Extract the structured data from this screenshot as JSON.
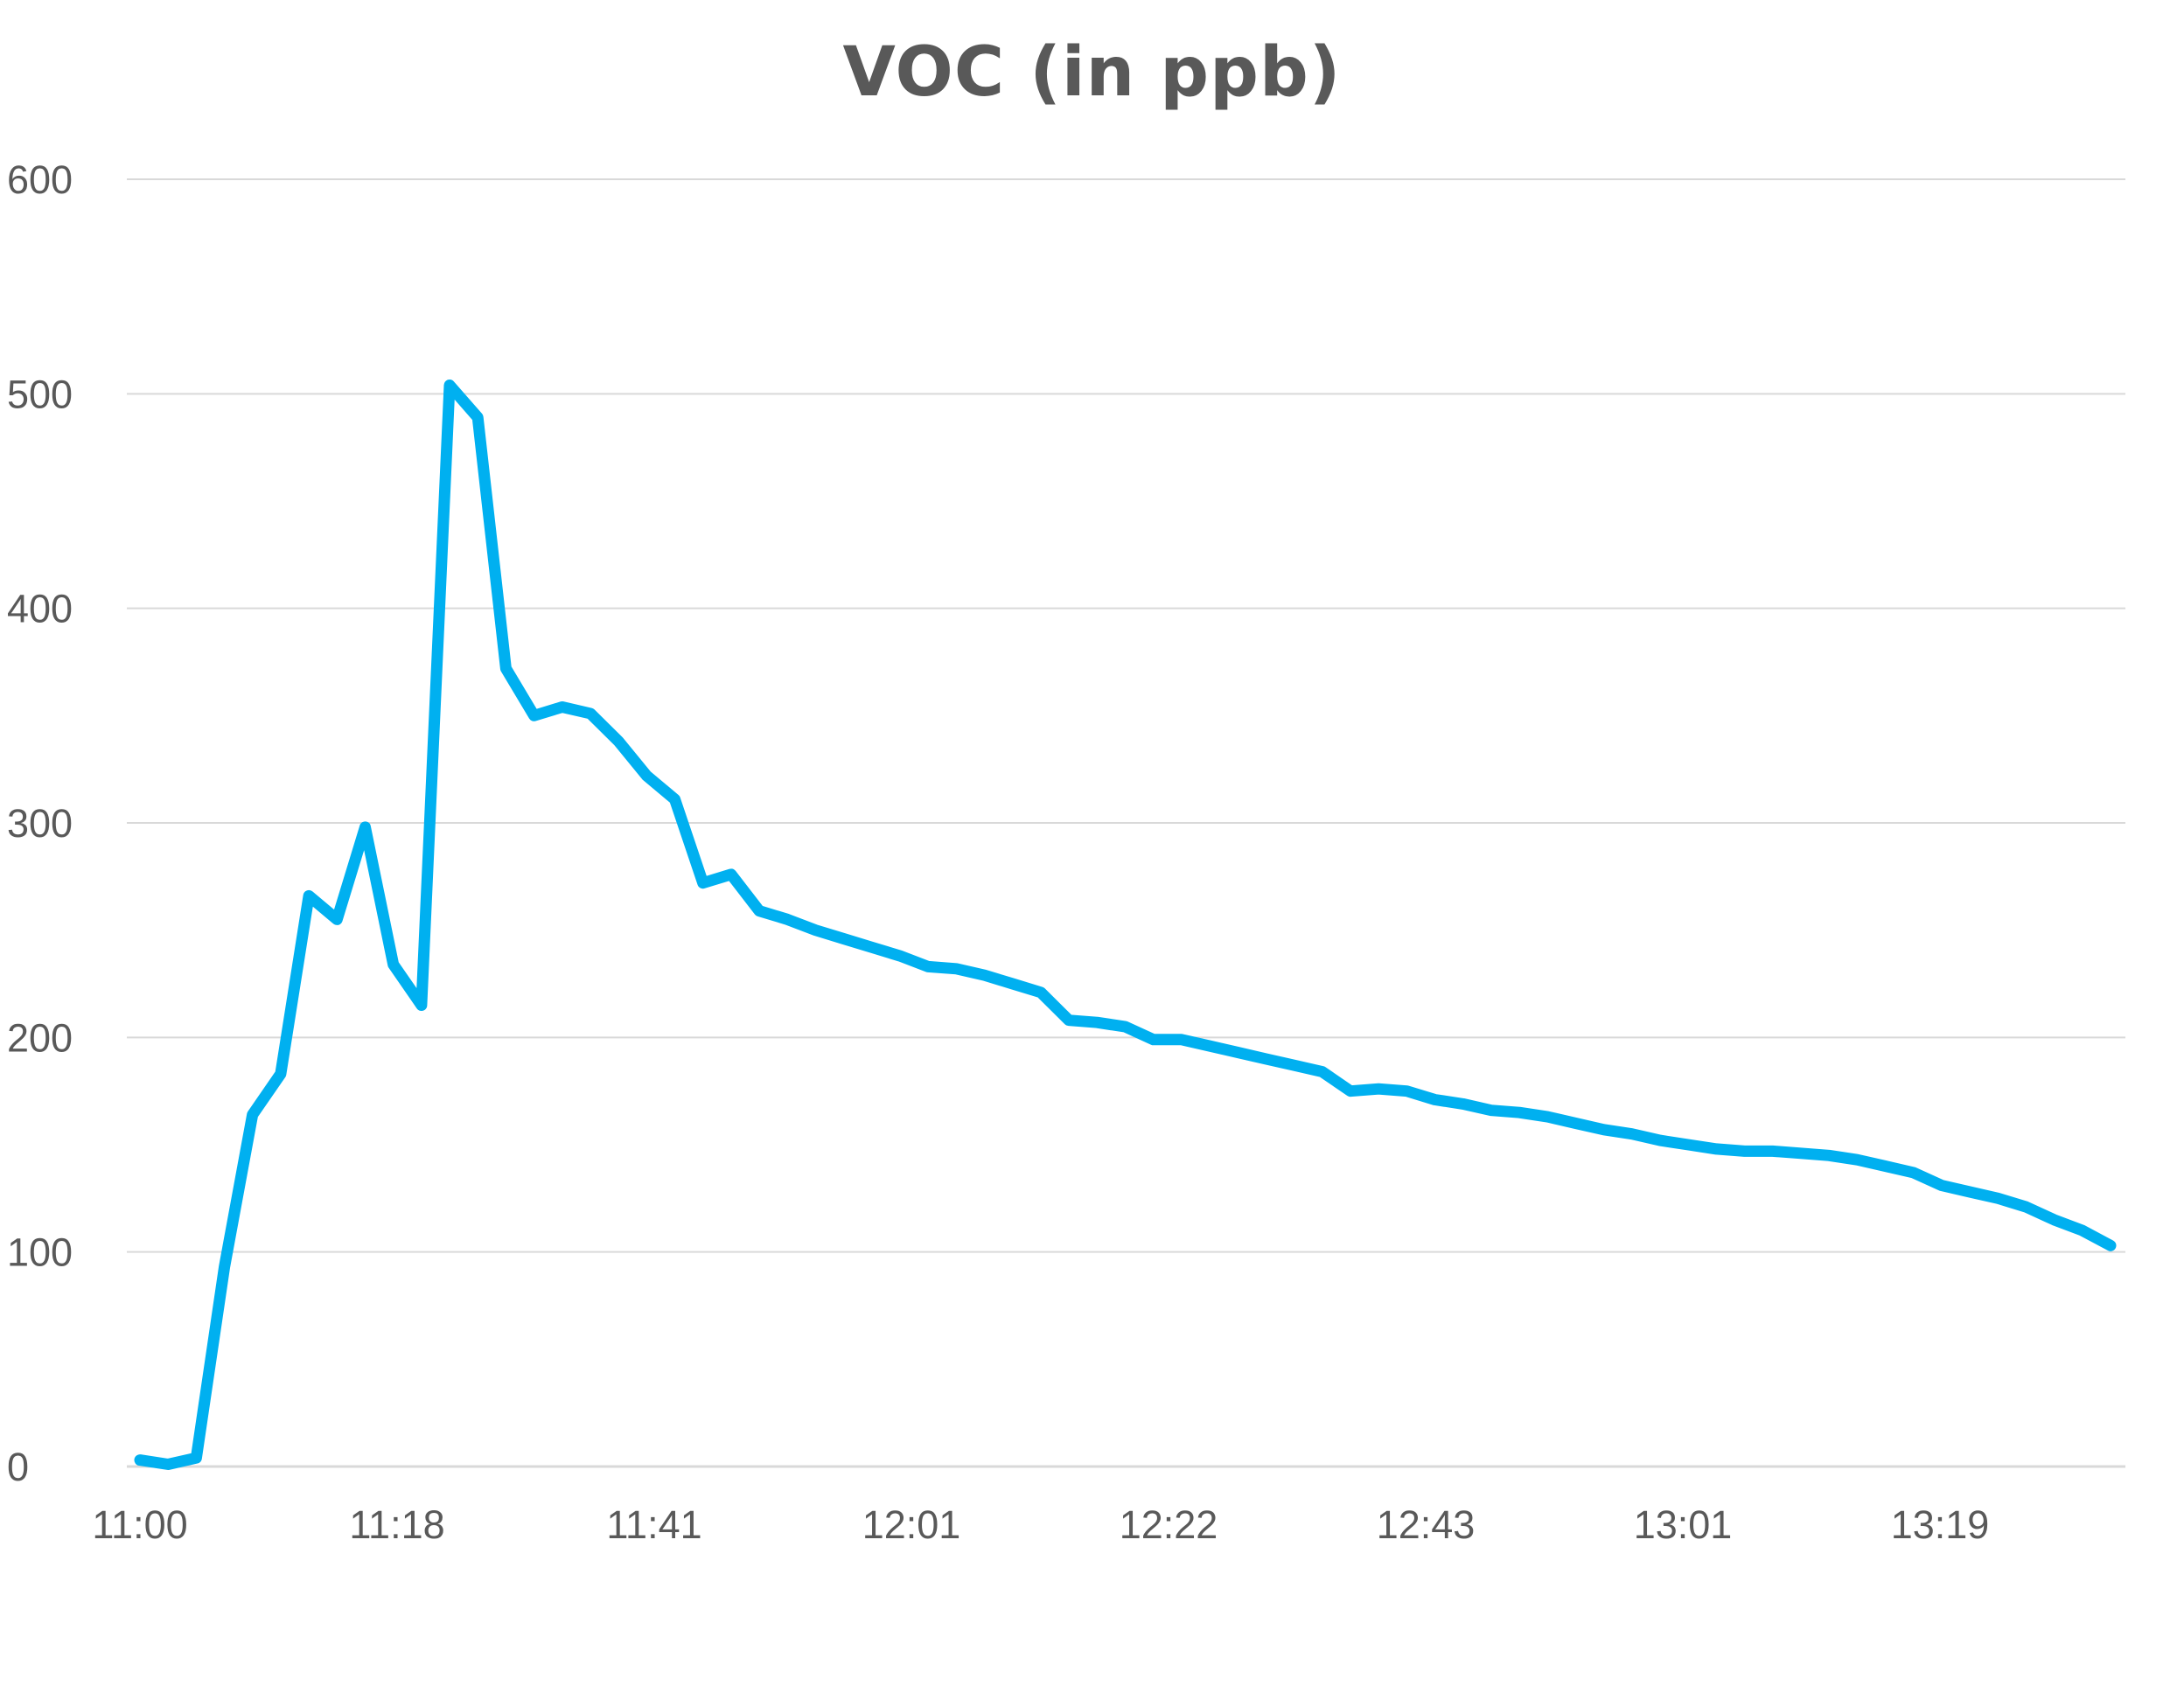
{
  "chart_data": {
    "type": "line",
    "title": "VOC (in ppb)",
    "xlabel": "",
    "ylabel": "",
    "ylim": [
      0,
      600
    ],
    "yticks": [
      0,
      100,
      200,
      300,
      400,
      500,
      600
    ],
    "xtick_labels": [
      "11:00",
      "11:18",
      "11:41",
      "12:01",
      "12:22",
      "12:43",
      "13:01",
      "13:19"
    ],
    "grid": true,
    "legend": "none",
    "series_color": "#00B0F0",
    "grid_color": "#D9D9D9",
    "text_color": "#595959",
    "series": [
      {
        "values": [
          3,
          1,
          4,
          93,
          164,
          183,
          266,
          255,
          298,
          234,
          215,
          504,
          489,
          372,
          350,
          354,
          351,
          338,
          322,
          311,
          272,
          276,
          259,
          255,
          250,
          246,
          242,
          238,
          233,
          232,
          229,
          225,
          221,
          208,
          207,
          205,
          199,
          199,
          196,
          193,
          190,
          187,
          184,
          175,
          176,
          175,
          171,
          169,
          166,
          165,
          163,
          160,
          157,
          155,
          152,
          150,
          148,
          147,
          147,
          146,
          145,
          143,
          140,
          137,
          131,
          128,
          125,
          121,
          115,
          110,
          103
        ]
      }
    ]
  }
}
